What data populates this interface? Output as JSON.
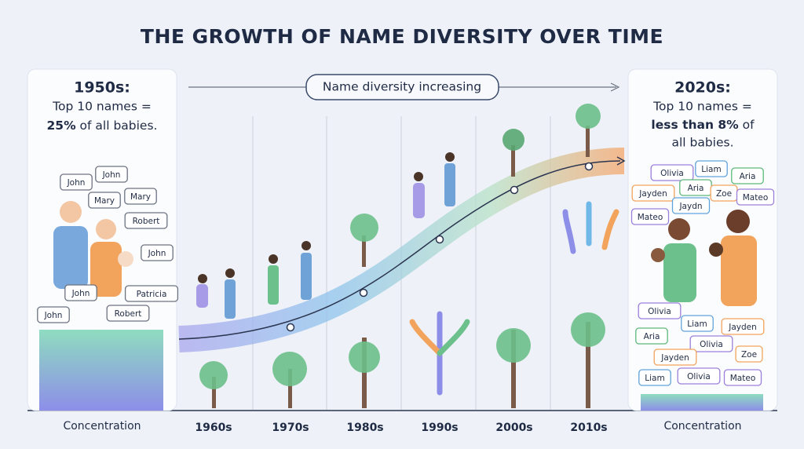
{
  "header": {
    "title": "THE GROWTH OF NAME DIVERSITY OVER TIME"
  },
  "banner": {
    "label": "Name diversity increasing"
  },
  "left_panel": {
    "heading": "1950s:",
    "line1": "Top 10 names =",
    "line2_bold": "25%",
    "line2_rest": "of all babies.",
    "names": [
      "John",
      "John",
      "Mary",
      "Mary",
      "Robert",
      "John",
      "John",
      "Patricia",
      "John",
      "Robert"
    ],
    "footer": "Concentration"
  },
  "right_panel": {
    "heading": "2020s:",
    "line1": "Top 10 names =",
    "line2_bold": "less than 8%",
    "line2_rest": "of",
    "line3": "all babies.",
    "names_top": [
      "Olivia",
      "Liam",
      "Aria",
      "Aria",
      "Jayden",
      "Jaydn",
      "Zoe",
      "Mateo",
      "Mateo"
    ],
    "names_bottom": [
      "Olivia",
      "Liam",
      "Jayden",
      "Aria",
      "Olivia",
      "Jayden",
      "Zoe",
      "Liam",
      "Olivia",
      "Mateo"
    ],
    "footer": "Concentration"
  },
  "timeline": {
    "decades": [
      "1960s",
      "1970s",
      "1980s",
      "1990s",
      "2000s",
      "2010s"
    ]
  }
}
